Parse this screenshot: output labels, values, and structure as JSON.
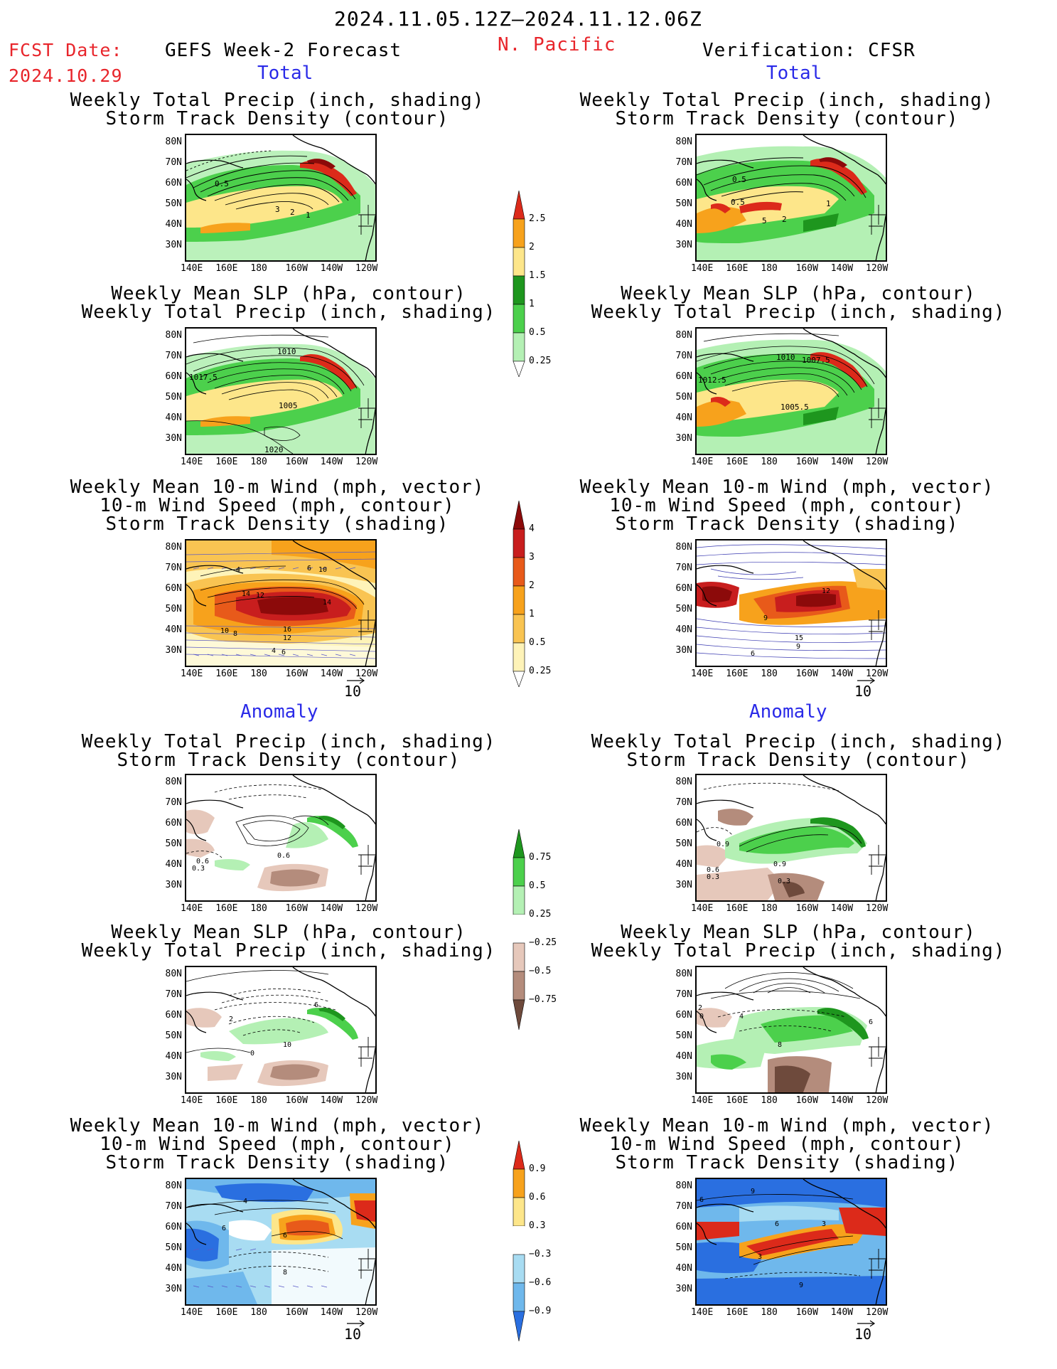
{
  "header": {
    "period": "2024.11.05.12Z–2024.11.12.06Z",
    "fcst_label": "FCST Date:",
    "fcst_date": "2024.10.29",
    "left_title": "GEFS Week-2 Forecast",
    "region": "N. Pacific",
    "right_title": "Verification: CFSR"
  },
  "sections": {
    "total": "Total",
    "anomaly": "Anomaly"
  },
  "panel_titles": {
    "precip_storm": [
      "Weekly Total Precip (inch, shading)",
      "Storm Track Density (contour)"
    ],
    "slp_precip": [
      "Weekly Mean SLP (hPa, contour)",
      "Weekly Total Precip (inch, shading)"
    ],
    "wind_storm": [
      "Weekly Mean 10-m Wind (mph, vector)",
      "10-m Wind Speed (mph, contour)",
      "Storm Track Density (shading)"
    ]
  },
  "axes": {
    "lat": [
      "80N",
      "70N",
      "60N",
      "50N",
      "40N",
      "30N"
    ],
    "lon": [
      "140E",
      "160E",
      "180",
      "160W",
      "140W",
      "120W"
    ]
  },
  "vector_ref": "10",
  "colorbars": {
    "precip_total": [
      "2.5",
      "2",
      "1.5",
      "1",
      "0.5",
      "0.25"
    ],
    "storm_total": [
      "4",
      "3",
      "2",
      "1",
      "0.5",
      "0.25"
    ],
    "precip_anom": [
      "0.75",
      "0.5",
      "0.25",
      "−0.25",
      "−0.5",
      "−0.75"
    ],
    "storm_anom": [
      "0.9",
      "0.6",
      "0.3",
      "−0.3",
      "−0.6",
      "−0.9"
    ]
  },
  "contour_labels": {
    "p1_left": [
      "0.5",
      "3",
      "2",
      "1"
    ],
    "p1_right": [
      "0.5",
      "0.5",
      "5",
      "2",
      "1"
    ],
    "p2_left": [
      "1010",
      "1017.5",
      "1005",
      "1020"
    ],
    "p2_right": [
      "1010",
      "1007.5",
      "1012.5",
      "1005.5"
    ],
    "p3_left": [
      "4",
      "6",
      "10",
      "14",
      "12",
      "14",
      "10",
      "8",
      "16",
      "12",
      "4",
      "6"
    ],
    "p3_right": [
      "12",
      "9",
      "15",
      "9",
      "6"
    ],
    "p4_left": [
      "0.6",
      "0.6",
      "0.3"
    ],
    "p4_right": [
      "0.9",
      "0.9",
      "0.6",
      "0.3",
      "0.3"
    ],
    "p5_left": [
      "2",
      "6",
      "10",
      "0"
    ],
    "p5_right": [
      "2",
      "0",
      "4",
      "6",
      "8"
    ],
    "p6_left": [
      "4",
      "6",
      "6",
      "8"
    ],
    "p6_right": [
      "9",
      "6",
      "6",
      "3",
      "3",
      "9"
    ]
  },
  "colors": {
    "title_red": "#e8252b",
    "section_blue": "#2a2ae8",
    "precip_green_light": "#b4f0b4",
    "precip_green": "#4cd04c",
    "precip_green_dark": "#1e961e",
    "precip_yellow": "#fde68a",
    "precip_orange": "#f7a21c",
    "precip_red": "#dc2a1a",
    "dry_brown_light": "#e6c8bb",
    "dry_brown": "#b48c7c",
    "dry_brown_dark": "#6e4a3c",
    "storm_darkred": "#8c0a0a",
    "neg_blue": "#2a6fe0",
    "neg_blue_light": "#a8dcf2"
  }
}
